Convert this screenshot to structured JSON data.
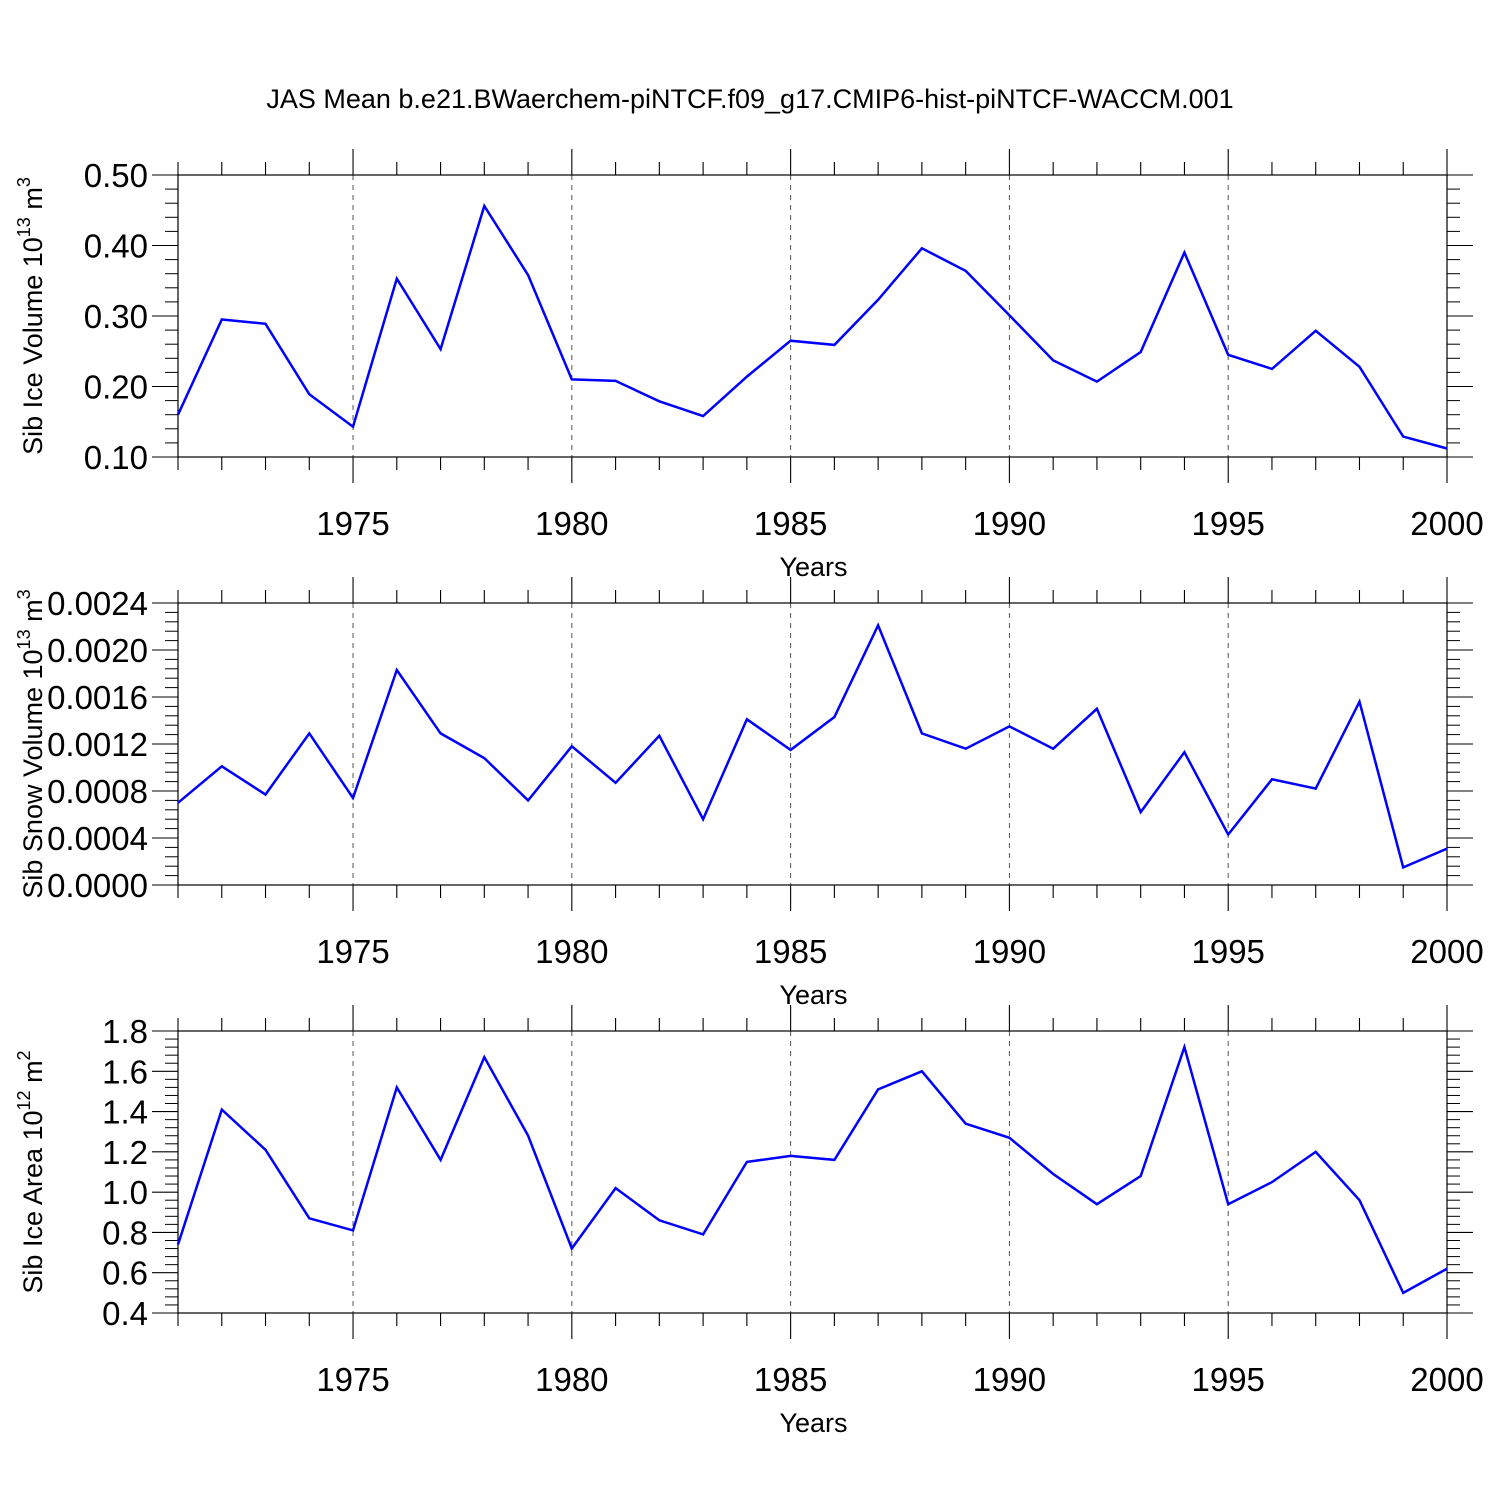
{
  "title": "JAS Mean b.e21.BWaerchem-piNTCF.f09_g17.CMIP6-hist-piNTCF-WACCM.001",
  "colors": {
    "line": "#0000ff",
    "axis": "#000000",
    "grid": "#555555"
  },
  "chart_data": [
    {
      "type": "line",
      "id": "ice-volume",
      "ylabel": "Sib Ice Volume 10^13 m^3",
      "ylabel_parts": {
        "base": "Sib Ice Volume 10",
        "sup1": "13",
        "mid": " m",
        "sup2": "3"
      },
      "xlabel": "Years",
      "xlim": [
        1971,
        2000
      ],
      "ylim": [
        0.1,
        0.5
      ],
      "yticks": [
        0.1,
        0.2,
        0.3,
        0.4,
        0.5
      ],
      "ytick_labels": [
        "0.10",
        "0.20",
        "0.30",
        "0.40",
        "0.50"
      ],
      "xticks": [
        1975,
        1980,
        1985,
        1990,
        1995,
        2000
      ],
      "xtick_labels": [
        "1975",
        "1980",
        "1985",
        "1990",
        "1995",
        "2000"
      ],
      "x": [
        1971,
        1972,
        1973,
        1974,
        1975,
        1976,
        1977,
        1978,
        1979,
        1980,
        1981,
        1982,
        1983,
        1984,
        1985,
        1986,
        1987,
        1988,
        1989,
        1990,
        1991,
        1992,
        1993,
        1994,
        1995,
        1996,
        1997,
        1998,
        1999,
        2000
      ],
      "series": [
        {
          "name": "Sib Ice Volume",
          "values": [
            0.16,
            0.295,
            0.289,
            0.189,
            0.143,
            0.353,
            0.253,
            0.456,
            0.358,
            0.21,
            0.208,
            0.179,
            0.158,
            0.214,
            0.265,
            0.259,
            0.323,
            0.396,
            0.364,
            0.301,
            0.237,
            0.207,
            0.249,
            0.39,
            0.245,
            0.225,
            0.279,
            0.228,
            0.129,
            0.112
          ]
        }
      ]
    },
    {
      "type": "line",
      "id": "snow-volume",
      "ylabel": "Sib Snow Volume 10^13 m^3",
      "ylabel_parts": {
        "base": "Sib Snow Volume 10",
        "sup1": "13",
        "mid": " m",
        "sup2": "3"
      },
      "xlabel": "Years",
      "xlim": [
        1971,
        2000
      ],
      "ylim": [
        0.0,
        0.0024
      ],
      "yticks": [
        0.0,
        0.0004,
        0.0008,
        0.0012,
        0.0016,
        0.002,
        0.0024
      ],
      "ytick_labels": [
        "0.0000",
        "0.0004",
        "0.0008",
        "0.0012",
        "0.0016",
        "0.0020",
        "0.0024"
      ],
      "xticks": [
        1975,
        1980,
        1985,
        1990,
        1995,
        2000
      ],
      "xtick_labels": [
        "1975",
        "1980",
        "1985",
        "1990",
        "1995",
        "2000"
      ],
      "x": [
        1971,
        1972,
        1973,
        1974,
        1975,
        1976,
        1977,
        1978,
        1979,
        1980,
        1981,
        1982,
        1983,
        1984,
        1985,
        1986,
        1987,
        1988,
        1989,
        1990,
        1991,
        1992,
        1993,
        1994,
        1995,
        1996,
        1997,
        1998,
        1999,
        2000
      ],
      "series": [
        {
          "name": "Sib Snow Volume",
          "values": [
            0.0007,
            0.00101,
            0.00077,
            0.00129,
            0.00074,
            0.00183,
            0.00129,
            0.00108,
            0.00072,
            0.00118,
            0.00087,
            0.00127,
            0.00056,
            0.00141,
            0.00115,
            0.00143,
            0.00221,
            0.00129,
            0.00116,
            0.00135,
            0.00116,
            0.0015,
            0.00062,
            0.00113,
            0.00043,
            0.0009,
            0.00082,
            0.00156,
            0.00015,
            0.00031
          ]
        }
      ]
    },
    {
      "type": "line",
      "id": "ice-area",
      "ylabel": "Sib Ice Area 10^12 m^2",
      "ylabel_parts": {
        "base": "Sib Ice Area 10",
        "sup1": "12",
        "mid": " m",
        "sup2": "2"
      },
      "xlabel": "Years",
      "xlim": [
        1971,
        2000
      ],
      "ylim": [
        0.4,
        1.8
      ],
      "yticks": [
        0.4,
        0.6,
        0.8,
        1.0,
        1.2,
        1.4,
        1.6,
        1.8
      ],
      "ytick_labels": [
        "0.4",
        "0.6",
        "0.8",
        "1.0",
        "1.2",
        "1.4",
        "1.6",
        "1.8"
      ],
      "xticks": [
        1975,
        1980,
        1985,
        1990,
        1995,
        2000
      ],
      "xtick_labels": [
        "1975",
        "1980",
        "1985",
        "1990",
        "1995",
        "2000"
      ],
      "x": [
        1971,
        1972,
        1973,
        1974,
        1975,
        1976,
        1977,
        1978,
        1979,
        1980,
        1981,
        1982,
        1983,
        1984,
        1985,
        1986,
        1987,
        1988,
        1989,
        1990,
        1991,
        1992,
        1993,
        1994,
        1995,
        1996,
        1997,
        1998,
        1999,
        2000
      ],
      "series": [
        {
          "name": "Sib Ice Area",
          "values": [
            0.74,
            1.41,
            1.21,
            0.87,
            0.81,
            1.52,
            1.16,
            1.67,
            1.28,
            0.72,
            1.02,
            0.86,
            0.79,
            1.15,
            1.18,
            1.16,
            1.51,
            1.6,
            1.34,
            1.27,
            1.09,
            0.94,
            1.08,
            1.72,
            0.94,
            1.05,
            1.2,
            0.96,
            0.5,
            0.62
          ]
        }
      ]
    }
  ]
}
